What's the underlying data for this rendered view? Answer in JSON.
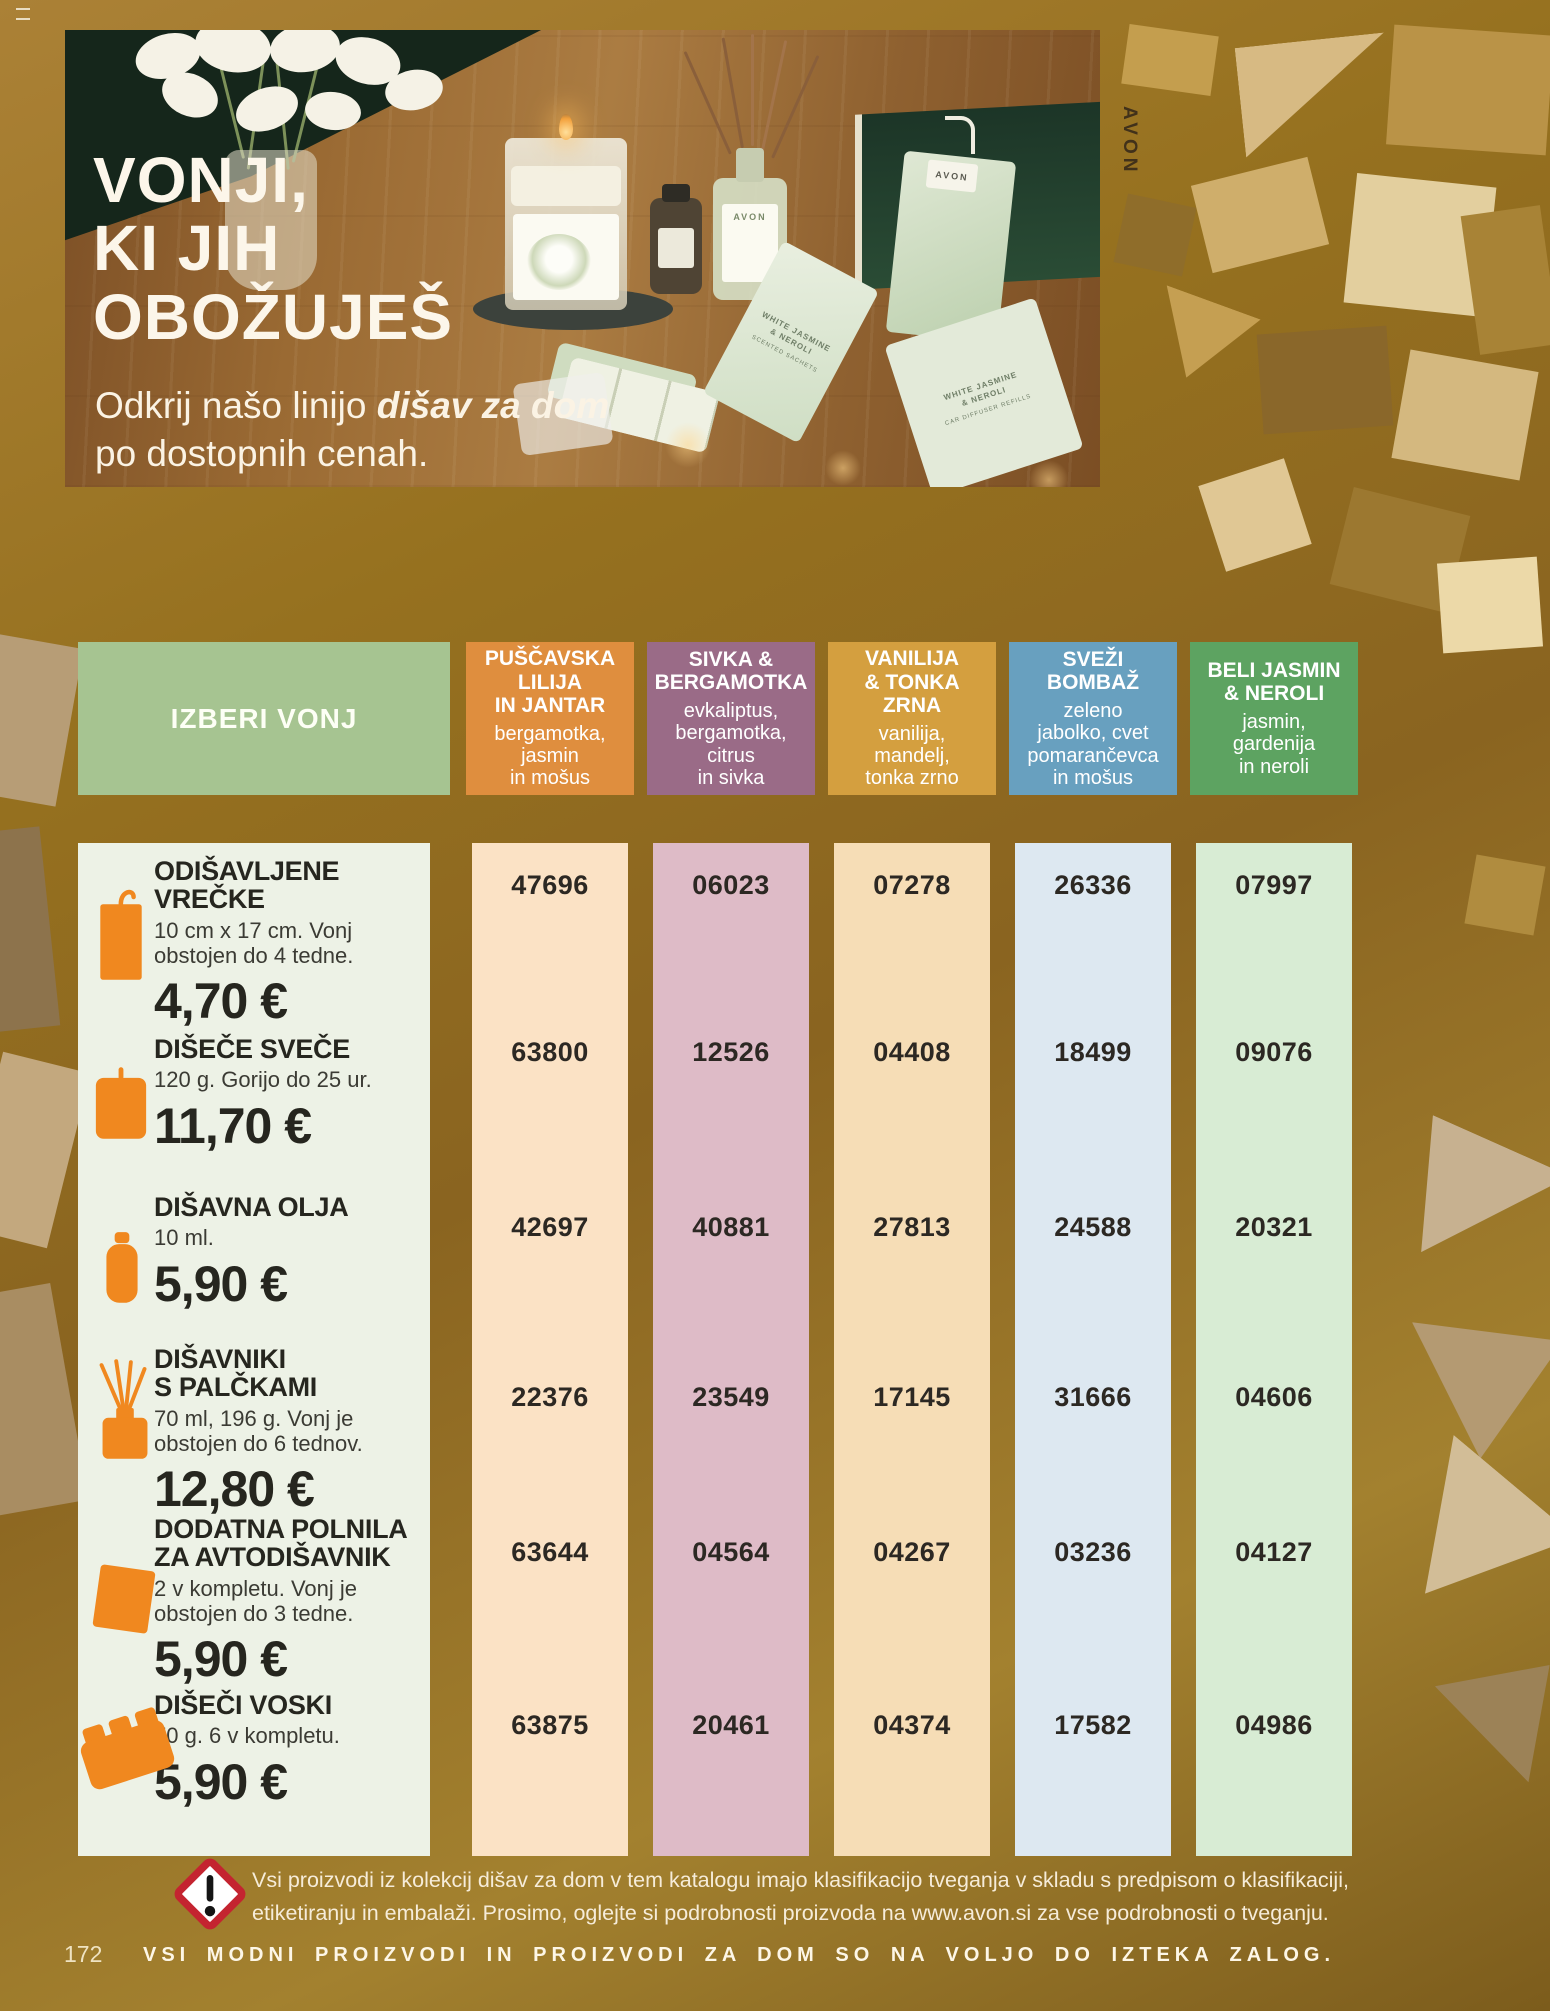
{
  "hero": {
    "title_lines": [
      "VONJI,",
      "KI JIH",
      "OBOŽUJEŠ"
    ],
    "subtitle_prefix": "Odkrij našo linijo ",
    "subtitle_bold": "dišav za dom",
    "subtitle_line2": "po dostopnih cenah.",
    "brand_vertical": "AVON",
    "tag_label": "AVON",
    "diffuser_label": "AVON",
    "packets": [
      {
        "line1": "WHITE JASMINE\n& NEROLI",
        "line2": "SCENTED SACHETS"
      },
      {
        "line1": "WHITE JASMINE\n& NEROLI",
        "line2": "CAR DIFFUSER REFILLS"
      }
    ]
  },
  "table": {
    "select_label": "IZBERI VONJ",
    "scents": [
      {
        "id": "puscavska-lilija-in-jantar",
        "name": "PUŠČAVSKA\nLILIJA\nIN JANTAR",
        "notes": "bergamotka,\njasmin\nin mošus",
        "header_color": "#df8e3e",
        "body_color": "#fbe2c5"
      },
      {
        "id": "sivka-bergamotka",
        "name": "SIVKA &\nBERGAMOTKA",
        "notes": "evkaliptus,\nbergamotka,\ncitrus\nin sivka",
        "header_color": "#9a6b87",
        "body_color": "#debbc7"
      },
      {
        "id": "vanilija-tonka-zrna",
        "name": "VANILIJA\n& TONKA\nZRNA",
        "notes": "vanilija,\nmandelj,\ntonka zrno",
        "header_color": "#d49f3f",
        "body_color": "#f6ddb6"
      },
      {
        "id": "svezi-bombaz",
        "name": "SVEŽI\nBOMBAŽ",
        "notes": "zeleno\njabolko, cvet\npomarančevca\nin mošus",
        "header_color": "#68a0bf",
        "body_color": "#dde8f1"
      },
      {
        "id": "beli-jasmin-neroli",
        "name": "BELI JASMIN\n& NEROLI",
        "notes": "jasmin,\ngardenija\nin neroli",
        "header_color": "#5da361",
        "body_color": "#d8ecd4"
      }
    ],
    "products": [
      {
        "id": "odisavljene-vrecke",
        "name": "ODIŠAVLJENE\nVREČKE",
        "desc": "10 cm x 17 cm. Vonj\nobstojen do 4 tedne.",
        "price": "4,70 €",
        "icon": "sachet",
        "codes": [
          "47696",
          "06023",
          "07278",
          "26336",
          "07997"
        ]
      },
      {
        "id": "disece-svece",
        "name": "DIŠEČE SVEČE",
        "desc": "120 g. Gorijo do 25 ur.",
        "price": "11,70 €",
        "icon": "candle",
        "codes": [
          "63800",
          "12526",
          "04408",
          "18499",
          "09076"
        ]
      },
      {
        "id": "disavna-olja",
        "name": "DIŠAVNA OLJA",
        "desc": "10 ml.",
        "price": "5,90 €",
        "icon": "oil-bottle",
        "codes": [
          "42697",
          "40881",
          "27813",
          "24588",
          "20321"
        ]
      },
      {
        "id": "disavniki-s-palckami",
        "name": "DIŠAVNIKI\nS PALČKAMI",
        "desc": "70 ml, 196 g. Vonj je\nobstojen do 6 tednov.",
        "price": "12,80 €",
        "icon": "reed-diffuser",
        "codes": [
          "22376",
          "23549",
          "17145",
          "31666",
          "04606"
        ]
      },
      {
        "id": "dodatna-polnila-za-avtodisavnik",
        "name": "DODATNA POLNILA\nZA AVTODIŠAVNIK",
        "desc": "2 v kompletu. Vonj je\nobstojen do 3 tedne.",
        "price": "5,90 €",
        "icon": "refill-card",
        "codes": [
          "63644",
          "04564",
          "04267",
          "03236",
          "04127"
        ]
      },
      {
        "id": "diseci-voski",
        "name": "DIŠEČI VOSKI",
        "desc": "70 g. 6 v kompletu.",
        "price": "5,90 €",
        "icon": "wax-melt",
        "codes": [
          "63875",
          "20461",
          "04374",
          "17582",
          "04986"
        ]
      }
    ]
  },
  "footer": {
    "warning_line1": "Vsi proizvodi iz kolekcij dišav za dom v tem katalogu imajo klasifikacijo tveganja v skladu s predpisom o klasifikaciji,",
    "warning_line2": "etiketiranju in embalaži. Prosimo, oglejte si podrobnosti proizvoda na www.avon.si za vse podrobnosti o tveganju.",
    "page_number": "172",
    "availability_note": "VSI MODNI PROIZVODI IN PROIZVODI ZA DOM SO NA VOLJO DO IZTEKA ZALOG."
  },
  "colors": {
    "icon_orange": "#f0881f",
    "hazard_red": "#c42430",
    "select_green": "#a6c491"
  }
}
